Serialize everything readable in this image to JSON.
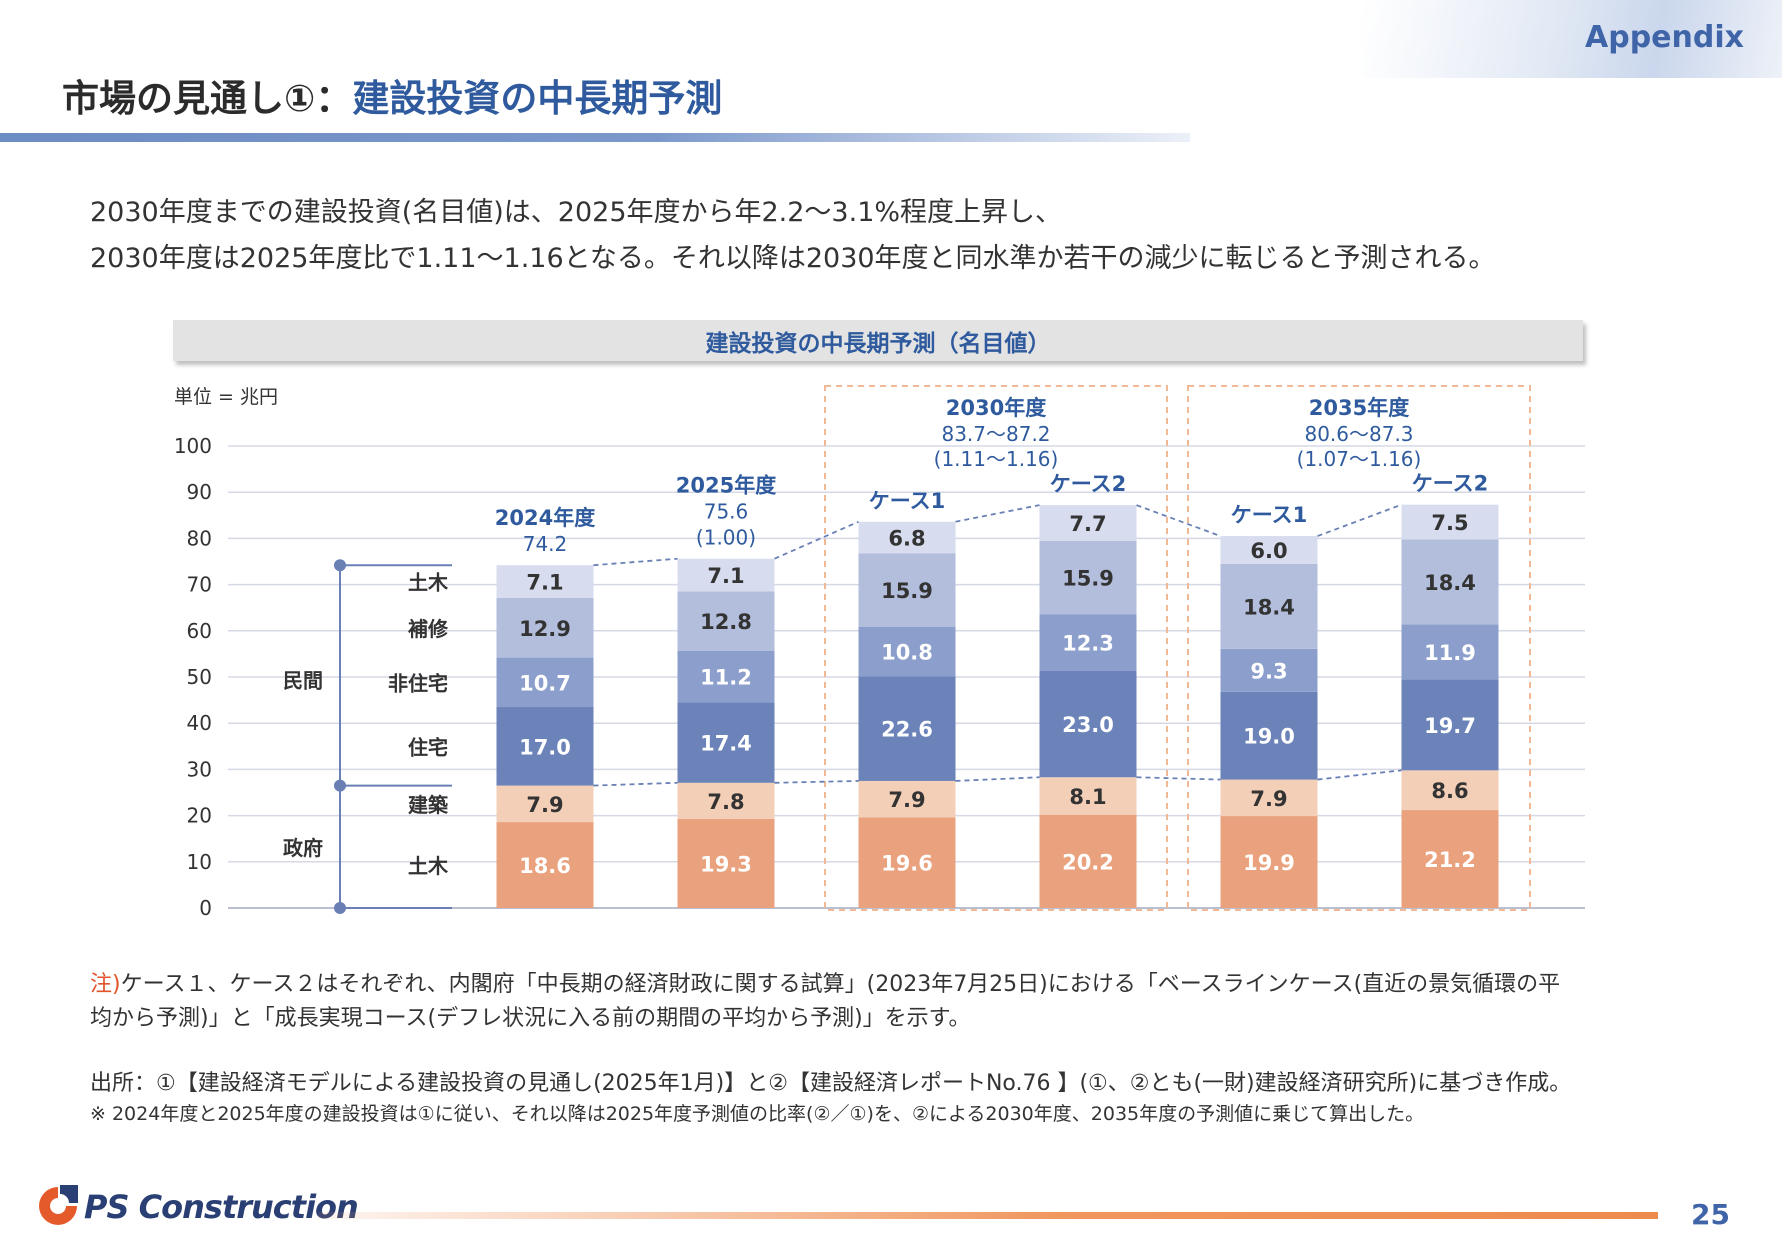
{
  "header": {
    "appendix": "Appendix",
    "title_prefix": "市場の見通し①：",
    "title_accent": "建設投資の中長期予測"
  },
  "lead": [
    "2030年度までの建設投資(名目値)は、2025年度から年2.2～3.1%程度上昇し、",
    "2030年度は2025年度比で1.11～1.16となる。それ以降は2030年度と同水準か若干の減少に転じると予測される。"
  ],
  "colors": {
    "gov_civil": "#e9a27d",
    "gov_building": "#f3cfb8",
    "housing": "#6b83b9",
    "non_housing": "#8c9fcc",
    "repair": "#b3bedd",
    "private_civil": "#d7dcee",
    "accent_blue": "#2f5b9e"
  },
  "chart_data": {
    "type": "bar",
    "stacked": true,
    "title": "建設投資の中長期予測（名目値）",
    "unit_label": "単位 = 兆円",
    "ylim": [
      0,
      100
    ],
    "yticks": [
      0,
      10,
      20,
      30,
      40,
      50,
      60,
      70,
      80,
      90,
      100
    ],
    "grid": true,
    "categories": [
      "2024年度",
      "2025年度",
      "2030年度 ケース1",
      "2030年度 ケース2",
      "2035年度 ケース1",
      "2035年度 ケース2"
    ],
    "series": [
      {
        "name": "土木",
        "group": "政府",
        "color_key": "gov_civil",
        "values": [
          18.6,
          19.3,
          19.6,
          20.2,
          19.9,
          21.2
        ]
      },
      {
        "name": "建築",
        "group": "政府",
        "color_key": "gov_building",
        "values": [
          7.9,
          7.8,
          7.9,
          8.1,
          7.9,
          8.6
        ]
      },
      {
        "name": "住宅",
        "group": "民間",
        "color_key": "housing",
        "values": [
          17.0,
          17.4,
          22.6,
          23.0,
          19.0,
          19.7
        ]
      },
      {
        "name": "非住宅",
        "group": "民間",
        "color_key": "non_housing",
        "values": [
          10.7,
          11.2,
          10.8,
          12.3,
          9.3,
          11.9
        ]
      },
      {
        "name": "補修",
        "group": "民間",
        "color_key": "repair",
        "values": [
          12.9,
          12.8,
          15.9,
          15.9,
          18.4,
          18.4
        ]
      },
      {
        "name": "土木",
        "group": "民間",
        "color_key": "private_civil",
        "values": [
          7.1,
          7.1,
          6.8,
          7.7,
          6.0,
          7.5
        ]
      }
    ],
    "value_labels": [
      [
        "18.6",
        "19.3",
        "19.6",
        "20.2",
        "19.9",
        "21.2"
      ],
      [
        "7.9",
        "7.8",
        "7.9",
        "8.1",
        "7.9",
        "8.6"
      ],
      [
        "17.0",
        "17.4",
        "22.6",
        "23.0",
        "19.0",
        "19.7"
      ],
      [
        "10.7",
        "11.2",
        "10.8",
        "12.3",
        "9.3",
        "11.9"
      ],
      [
        "12.9",
        "12.8",
        "15.9",
        "15.9",
        "18.4",
        "18.4"
      ],
      [
        "7.1",
        "7.1",
        "6.8",
        "7.7",
        "6.0",
        "7.5"
      ]
    ],
    "bar_headers": [
      {
        "title": "2024年度",
        "lines": [
          "74.2"
        ]
      },
      {
        "title": "2025年度",
        "lines": [
          "75.6",
          "(1.00)"
        ]
      },
      {
        "title": "ケース1",
        "lines": []
      },
      {
        "title": "ケース2",
        "lines": []
      },
      {
        "title": "ケース1",
        "lines": []
      },
      {
        "title": "ケース2",
        "lines": []
      }
    ],
    "group_boxes": [
      {
        "title": "2030年度",
        "range": "83.7～87.2",
        "ratio": "(1.11～1.16)",
        "bars": [
          2,
          3
        ]
      },
      {
        "title": "2035年度",
        "range": "80.6～87.3",
        "ratio": "(1.07～1.16)",
        "bars": [
          4,
          5
        ]
      }
    ],
    "category_groups": [
      {
        "label": "民間",
        "range": [
          26.5,
          74.2
        ],
        "items": [
          "土木",
          "補修",
          "非住宅",
          "住宅"
        ]
      },
      {
        "label": "政府",
        "range": [
          0,
          26.5
        ],
        "items": [
          "建築",
          "土木"
        ]
      }
    ],
    "legend": "none"
  },
  "notes": {
    "note_prefix": "注)",
    "note_line1": "ケース１、ケース２はそれぞれ、内閣府「中長期の経済財政に関する試算」(2023年7月25日)における「ベースラインケース(直近の景気循環の平",
    "note_line2": "均から予測)」と「成長実現コース(デフレ状況に入る前の期間の平均から予測)」を示す。",
    "source_line": "出所：①【建設経済モデルによる建設投資の見通し(2025年1月)】と②【建設経済レポートNo.76 】(①、②とも(一財)建設経済研究所)に基づき作成。",
    "footnote_line": "※ 2024年度と2025年度の建設投資は①に従い、それ以降は2025年度予測値の比率(②／①)を、②による2030年度、2035年度の予測値に乗じて算出した。"
  },
  "footer": {
    "logo_text": "PS Construction",
    "page_number": "25"
  }
}
